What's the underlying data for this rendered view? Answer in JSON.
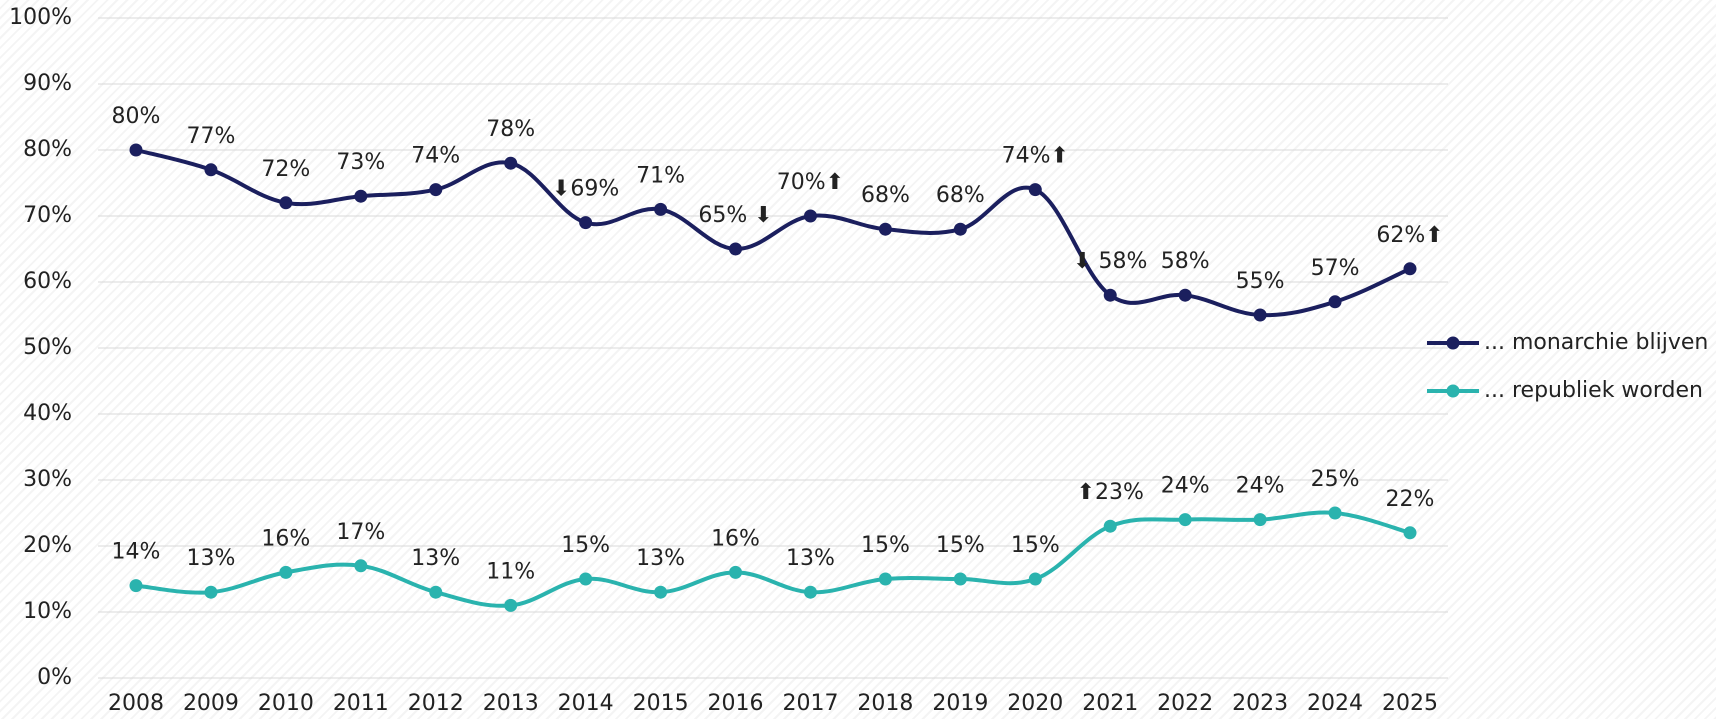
{
  "chart_data": {
    "type": "line",
    "categories": [
      "2008",
      "2009",
      "2010",
      "2011",
      "2012",
      "2013",
      "2014",
      "2015",
      "2016",
      "2017",
      "2018",
      "2019",
      "2020",
      "2021",
      "2022",
      "2023",
      "2024",
      "2025"
    ],
    "series": [
      {
        "name": "... monarchie blijven",
        "color": "#1b1f5e",
        "values": [
          80,
          77,
          72,
          73,
          74,
          78,
          69,
          71,
          65,
          70,
          68,
          68,
          74,
          58,
          58,
          55,
          57,
          62
        ],
        "value_labels": [
          "80%",
          "77%",
          "72%",
          "73%",
          "74%",
          "78%",
          "⬇69%",
          "71%",
          "65% ⬇",
          "70%⬆",
          "68%",
          "68%",
          "74%⬆",
          "⬇ 58%",
          "58%",
          "55%",
          "57%",
          "62%⬆"
        ]
      },
      {
        "name": "... republiek worden",
        "color": "#2ab3ae",
        "values": [
          14,
          13,
          16,
          17,
          13,
          11,
          15,
          13,
          16,
          13,
          15,
          15,
          15,
          23,
          24,
          24,
          25,
          22
        ],
        "value_labels": [
          "14%",
          "13%",
          "16%",
          "17%",
          "13%",
          "11%",
          "15%",
          "13%",
          "16%",
          "13%",
          "15%",
          "15%",
          "15%",
          "⬆23%",
          "24%",
          "24%",
          "25%",
          "22%"
        ]
      }
    ],
    "ylim": [
      0,
      100
    ],
    "yticks": [
      {
        "value": 0,
        "label": "0%"
      },
      {
        "value": 10,
        "label": "10%"
      },
      {
        "value": 20,
        "label": "20%"
      },
      {
        "value": 30,
        "label": "30%"
      },
      {
        "value": 40,
        "label": "40%"
      },
      {
        "value": 50,
        "label": "50%"
      },
      {
        "value": 60,
        "label": "60%"
      },
      {
        "value": 70,
        "label": "70%"
      },
      {
        "value": 80,
        "label": "80%"
      },
      {
        "value": 90,
        "label": "90%"
      },
      {
        "value": 100,
        "label": "100%"
      }
    ],
    "grid": true,
    "legend": "right"
  }
}
